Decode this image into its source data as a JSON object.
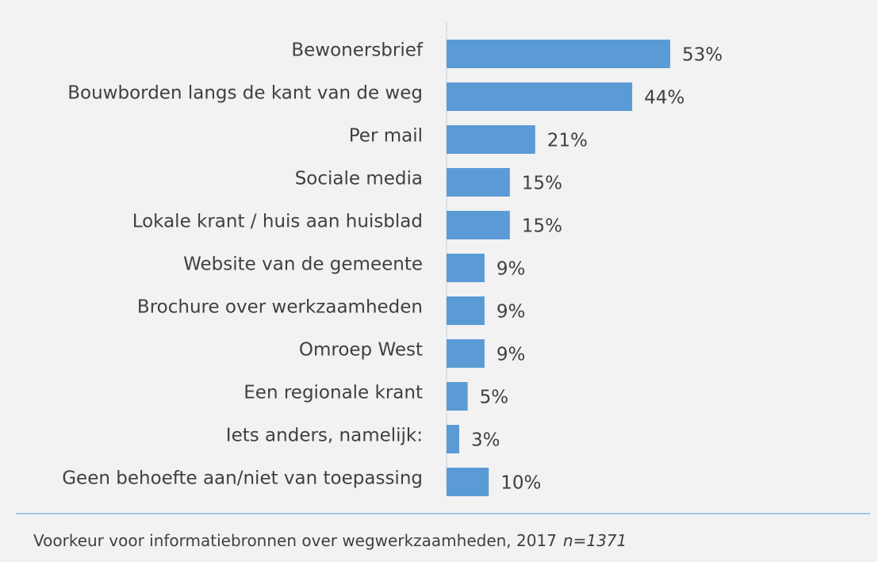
{
  "chart_data": {
    "type": "bar",
    "orientation": "horizontal",
    "categories": [
      "Bewonersbrief",
      "Bouwborden langs de kant van de weg",
      "Per mail",
      "Sociale media",
      "Lokale krant / huis aan huisblad",
      "Website van de gemeente",
      "Brochure over werkzaamheden",
      "Omroep West",
      "Een regionale krant",
      "Iets anders, namelijk:",
      "Geen behoefte aan/niet van toepassing"
    ],
    "values": [
      53,
      44,
      21,
      15,
      15,
      9,
      9,
      9,
      5,
      3,
      10
    ],
    "value_labels": [
      "53%",
      "44%",
      "21%",
      "15%",
      "15%",
      "9%",
      "9%",
      "9%",
      "5%",
      "3%",
      "10%"
    ],
    "color": "#5b9bd5",
    "caption": "Voorkeur voor informatiebronnen over wegwerkzaamheden, 2017",
    "sample_size": "n=1371"
  }
}
